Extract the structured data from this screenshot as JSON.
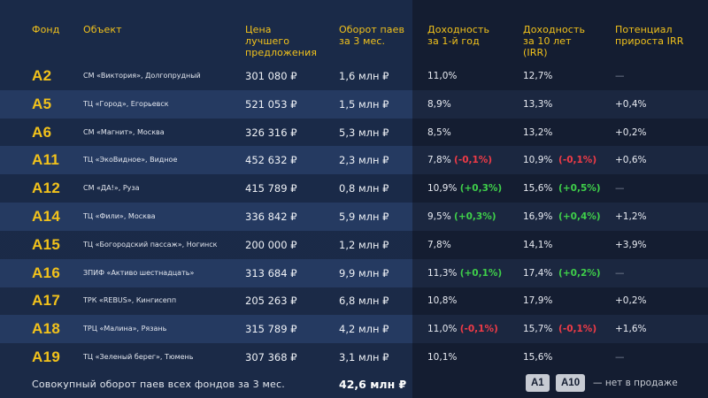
{
  "headers": {
    "fund": "Фонд",
    "object": "Объект",
    "price": "Цена\nлучшего\nпредложения",
    "turnover": "Оборот паев\nза 3 мес.",
    "yield1": "Доходность\nза 1-й год",
    "yield10": "Доходность\nза 10 лет\n(IRR)",
    "potential": "Потенциал\nприроста IRR"
  },
  "rows": [
    {
      "fund": "A2",
      "object": "СМ «Виктория», Долгопрудный",
      "price": "301 080 ₽",
      "turnover": "1,6 млн ₽",
      "y1": "11,0%",
      "y1d": "",
      "y1c": "",
      "y10": "12,7%",
      "y10d": "",
      "y10c": "",
      "pot": "—"
    },
    {
      "fund": "A5",
      "object": "ТЦ «Город», Егорьевск",
      "price": "521 053 ₽",
      "turnover": "1,5 млн ₽",
      "y1": "8,9%",
      "y1d": "",
      "y1c": "",
      "y10": "13,3%",
      "y10d": "",
      "y10c": "",
      "pot": "+0,4%"
    },
    {
      "fund": "A6",
      "object": "СМ «Магнит», Москва",
      "price": "326 316 ₽",
      "turnover": "5,3 млн ₽",
      "y1": "8,5%",
      "y1d": "",
      "y1c": "",
      "y10": "13,2%",
      "y10d": "",
      "y10c": "",
      "pot": "+0,2%"
    },
    {
      "fund": "A11",
      "object": "ТЦ «ЭкоВидное», Видное",
      "price": "452 632 ₽",
      "turnover": "2,3 млн ₽",
      "y1": "7,8%",
      "y1d": "(-0,1%)",
      "y1c": "neg",
      "y10": "10,9%",
      "y10d": "(-0,1%)",
      "y10c": "neg",
      "pot": "+0,6%"
    },
    {
      "fund": "A12",
      "object": "СМ «ДА!», Руза",
      "price": "415 789 ₽",
      "turnover": "0,8 млн ₽",
      "y1": "10,9%",
      "y1d": "(+0,3%)",
      "y1c": "pos",
      "y10": "15,6%",
      "y10d": "(+0,5%)",
      "y10c": "pos",
      "pot": "—"
    },
    {
      "fund": "A14",
      "object": "ТЦ «Фили», Москва",
      "price": "336 842 ₽",
      "turnover": "5,9 млн ₽",
      "y1": "9,5%",
      "y1d": "(+0,3%)",
      "y1c": "pos",
      "y10": "16,9%",
      "y10d": "(+0,4%)",
      "y10c": "pos",
      "pot": "+1,2%"
    },
    {
      "fund": "A15",
      "object": "ТЦ «Богородский пассаж», Ногинск",
      "price": "200 000 ₽",
      "turnover": "1,2 млн ₽",
      "y1": "7,8%",
      "y1d": "",
      "y1c": "",
      "y10": "14,1%",
      "y10d": "",
      "y10c": "",
      "pot": "+3,9%"
    },
    {
      "fund": "A16",
      "object": "ЗПИФ «Активо шестнадцать»",
      "price": "313 684 ₽",
      "turnover": "9,9 млн ₽",
      "y1": "11,3%",
      "y1d": "(+0,1%)",
      "y1c": "pos",
      "y10": "17,4%",
      "y10d": "(+0,2%)",
      "y10c": "pos",
      "pot": "—"
    },
    {
      "fund": "A17",
      "object": "ТРК «REBUS», Кингисепп",
      "price": "205 263 ₽",
      "turnover": "6,8 млн ₽",
      "y1": "10,8%",
      "y1d": "",
      "y1c": "",
      "y10": "17,9%",
      "y10d": "",
      "y10c": "",
      "pot": "+0,2%"
    },
    {
      "fund": "A18",
      "object": "ТРЦ «Малина», Рязань",
      "price": "315 789 ₽",
      "turnover": "4,2 млн ₽",
      "y1": "11,0%",
      "y1d": "(-0,1%)",
      "y1c": "neg",
      "y10": "15,7%",
      "y10d": "(-0,1%)",
      "y10c": "neg",
      "pot": "+1,6%"
    },
    {
      "fund": "A19",
      "object": "ТЦ «Зеленый берег», Тюмень",
      "price": "307 368 ₽",
      "turnover": "3,1 млн ₽",
      "y1": "10,1%",
      "y1d": "",
      "y1c": "",
      "y10": "15,6%",
      "y10d": "",
      "y10c": "",
      "pot": "—"
    }
  ],
  "footer": {
    "label": "Совокупный оборот паев всех фондов за 3 мес.",
    "total": "42,6 млн ₽",
    "badge1": "A1",
    "badge2": "A10",
    "legend": "— нет в продаже"
  },
  "colors": {
    "accent": "#f2c21b",
    "negative": "#ef3b47",
    "positive": "#3fcf4a",
    "background": "#182540"
  }
}
